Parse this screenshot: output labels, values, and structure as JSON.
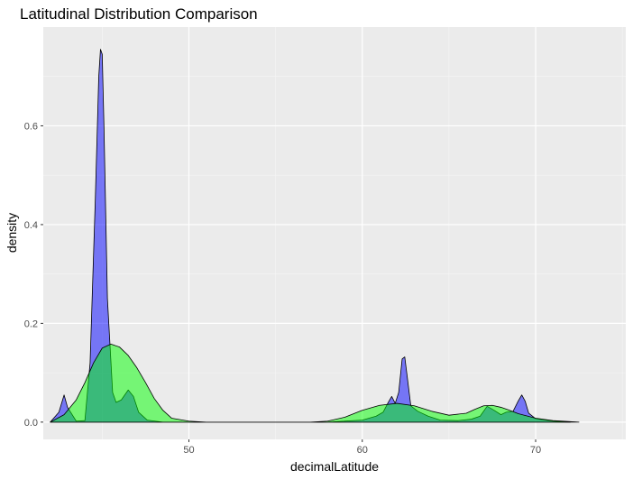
{
  "chart_data": {
    "type": "area",
    "title": "Latitudinal Distribution Comparison",
    "xlabel": "decimalLatitude",
    "ylabel": "density",
    "xlim": [
      41.6,
      75.2
    ],
    "ylim": [
      -0.035,
      0.8
    ],
    "x_ticks": [
      50,
      60,
      70
    ],
    "x_tick_labels": [
      "50",
      "60",
      "70"
    ],
    "y_ticks": [
      0.0,
      0.2,
      0.4,
      0.6
    ],
    "y_tick_labels": [
      "0.0",
      "0.2",
      "0.4",
      "0.6"
    ],
    "grid": true,
    "legend": "none",
    "colors": {
      "panel": "#EBEBEB",
      "grid_major": "#FFFFFF",
      "grid_minor": "#F5F5F5",
      "series_blue": "#0000FF",
      "series_green": "#00FF00",
      "outline": "#000000"
    },
    "series": [
      {
        "color": "#0000FF",
        "opacity": 0.5,
        "x": [
          42.0,
          42.5,
          42.8,
          43.0,
          43.5,
          44.0,
          44.3,
          44.6,
          44.8,
          44.9,
          45.0,
          45.1,
          45.3,
          45.6,
          45.8,
          46.1,
          46.5,
          46.8,
          47.1,
          47.6,
          48.5,
          50.0,
          55.0,
          58.0,
          60.0,
          60.8,
          61.2,
          61.5,
          61.7,
          61.9,
          62.1,
          62.3,
          62.45,
          62.6,
          62.8,
          63.2,
          63.8,
          64.5,
          65.5,
          66.3,
          66.8,
          67.2,
          67.6,
          68.0,
          68.3,
          68.7,
          69.0,
          69.2,
          69.4,
          69.6,
          70.0,
          71.0,
          72.0
        ],
        "y": [
          0.0,
          0.02,
          0.055,
          0.03,
          0.002,
          0.003,
          0.12,
          0.45,
          0.7,
          0.755,
          0.745,
          0.6,
          0.25,
          0.06,
          0.04,
          0.045,
          0.065,
          0.052,
          0.02,
          0.004,
          0.0,
          0.0,
          0.0,
          0.0,
          0.004,
          0.012,
          0.02,
          0.04,
          0.052,
          0.038,
          0.06,
          0.128,
          0.132,
          0.09,
          0.033,
          0.022,
          0.012,
          0.004,
          0.003,
          0.006,
          0.012,
          0.032,
          0.024,
          0.015,
          0.02,
          0.022,
          0.043,
          0.055,
          0.042,
          0.018,
          0.007,
          0.002,
          0.0
        ]
      },
      {
        "color": "#00FF00",
        "opacity": 0.5,
        "x": [
          42.0,
          42.8,
          43.5,
          44.0,
          44.5,
          45.0,
          45.5,
          46.0,
          46.5,
          47.0,
          47.5,
          48.0,
          48.5,
          49.0,
          50.0,
          51.0,
          54.0,
          57.0,
          58.0,
          59.0,
          60.0,
          61.0,
          62.0,
          63.0,
          64.0,
          65.0,
          66.0,
          66.5,
          67.0,
          67.5,
          68.0,
          68.5,
          69.0,
          70.0,
          71.0,
          72.0,
          72.5
        ],
        "y": [
          0.0,
          0.015,
          0.045,
          0.08,
          0.12,
          0.15,
          0.158,
          0.152,
          0.135,
          0.11,
          0.08,
          0.048,
          0.024,
          0.008,
          0.002,
          0.0,
          0.0,
          0.0,
          0.002,
          0.01,
          0.024,
          0.034,
          0.038,
          0.033,
          0.022,
          0.014,
          0.018,
          0.026,
          0.033,
          0.034,
          0.03,
          0.024,
          0.017,
          0.008,
          0.003,
          0.001,
          0.0
        ]
      }
    ]
  }
}
